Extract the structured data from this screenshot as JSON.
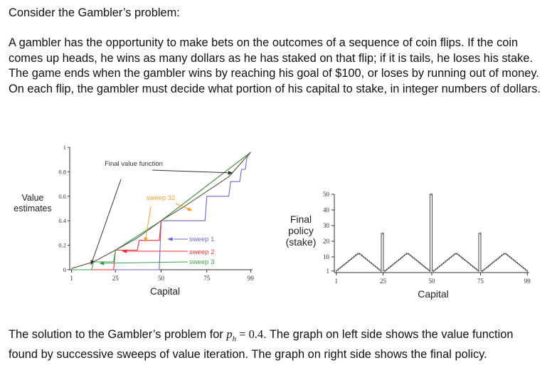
{
  "intro": {
    "title": "Consider the Gambler’s problem:",
    "body": "A gambler has the opportunity to make bets on the outcomes of a sequence of coin flips. If the coin comes up heads, he wins as many dollars as he has staked on that flip; if it is tails, he loses his stake. The game ends when the gambler wins by reaching his goal of $100, or loses by running out of money. On each flip, the gambler must decide what portion of his capital to stake, in integer numbers of dollars."
  },
  "caption": {
    "pre": "The solution to the Gambler’s problem for ",
    "p": "p",
    "sub": "h",
    "eq": " = 0.4",
    "post": ". The graph on left side shows the value function found by successive sweeps of value iteration. The graph on right side shows the final policy."
  },
  "chart_data": [
    {
      "type": "line",
      "xlabel": "Capital",
      "ylabel": "Value estimates",
      "xticks": [
        1,
        25,
        50,
        75,
        99
      ],
      "yticks": [
        0,
        0.2,
        0.4,
        0.6,
        0.8,
        1
      ],
      "ytick_labels": [
        "0",
        "0.2",
        "0.4",
        "0.6",
        "0.8",
        "1"
      ],
      "xlim": [
        0,
        100
      ],
      "ylim": [
        0,
        1
      ],
      "colors": {
        "sweep1": "#6a6ac8",
        "sweep2": "#e8303a",
        "sweep3": "#3aa050",
        "sweep32": "#f0a030",
        "final": "#5a5a5a"
      },
      "annotations": {
        "final": "Final value function",
        "sweep32": "sweep 32",
        "sweep1": "sweep 1",
        "sweep2": "sweep 2",
        "sweep3": "sweep 3"
      },
      "series": [
        {
          "name": "sweep 1",
          "x": [
            1,
            49,
            50,
            74,
            75,
            87,
            88,
            93,
            94,
            96,
            97,
            99
          ],
          "y": [
            0,
            0,
            0.4,
            0.4,
            0.6,
            0.6,
            0.72,
            0.72,
            0.82,
            0.82,
            0.92,
            0.96
          ]
        },
        {
          "name": "sweep 2",
          "x": [
            1,
            24,
            25,
            37,
            38,
            49,
            50,
            99
          ],
          "y": [
            0,
            0,
            0.16,
            0.16,
            0.24,
            0.24,
            0.4,
            0.96
          ]
        },
        {
          "name": "sweep 3",
          "x": [
            1,
            12,
            13,
            24,
            25,
            49,
            50,
            99
          ],
          "y": [
            0,
            0,
            0.064,
            0.064,
            0.16,
            0.39,
            0.4,
            0.96
          ]
        },
        {
          "name": "sweep 32",
          "x": [
            1,
            12,
            13,
            25,
            37,
            50,
            62,
            75,
            87,
            99
          ],
          "y": [
            0.01,
            0.06,
            0.064,
            0.16,
            0.26,
            0.4,
            0.51,
            0.64,
            0.76,
            0.96
          ]
        },
        {
          "name": "final",
          "x": [
            1,
            12,
            13,
            25,
            37,
            50,
            62,
            75,
            87,
            99
          ],
          "y": [
            0.01,
            0.06,
            0.064,
            0.16,
            0.26,
            0.4,
            0.51,
            0.64,
            0.76,
            0.96
          ]
        }
      ]
    },
    {
      "type": "bar",
      "xlabel": "Capital",
      "ylabel": "Final policy (stake)",
      "xticks": [
        1,
        25,
        50,
        75,
        99
      ],
      "yticks": [
        1,
        10,
        20,
        30,
        40,
        50
      ],
      "xlim": [
        0,
        100
      ],
      "ylim": [
        0,
        50
      ],
      "x": [
        1,
        2,
        3,
        4,
        5,
        6,
        7,
        8,
        9,
        10,
        11,
        12,
        13,
        14,
        15,
        16,
        17,
        18,
        19,
        20,
        21,
        22,
        23,
        24,
        25,
        26,
        27,
        28,
        29,
        30,
        31,
        32,
        33,
        34,
        35,
        36,
        37,
        38,
        39,
        40,
        41,
        42,
        43,
        44,
        45,
        46,
        47,
        48,
        49,
        50,
        51,
        52,
        53,
        54,
        55,
        56,
        57,
        58,
        59,
        60,
        61,
        62,
        63,
        64,
        65,
        66,
        67,
        68,
        69,
        70,
        71,
        72,
        73,
        74,
        75,
        76,
        77,
        78,
        79,
        80,
        81,
        82,
        83,
        84,
        85,
        86,
        87,
        88,
        89,
        90,
        91,
        92,
        93,
        94,
        95,
        96,
        97,
        98,
        99
      ],
      "values": [
        1,
        2,
        3,
        4,
        5,
        6,
        7,
        8,
        9,
        10,
        11,
        12,
        12,
        11,
        10,
        9,
        8,
        7,
        6,
        5,
        4,
        3,
        2,
        1,
        25,
        1,
        2,
        3,
        4,
        5,
        6,
        7,
        8,
        9,
        10,
        11,
        12,
        12,
        11,
        10,
        9,
        8,
        7,
        6,
        5,
        4,
        3,
        2,
        1,
        50,
        1,
        2,
        3,
        4,
        5,
        6,
        7,
        8,
        9,
        10,
        11,
        12,
        12,
        11,
        10,
        9,
        8,
        7,
        6,
        5,
        4,
        3,
        2,
        1,
        25,
        1,
        2,
        3,
        4,
        5,
        6,
        7,
        8,
        9,
        10,
        11,
        12,
        12,
        11,
        10,
        9,
        8,
        7,
        6,
        5,
        4,
        3,
        2,
        1
      ]
    }
  ]
}
